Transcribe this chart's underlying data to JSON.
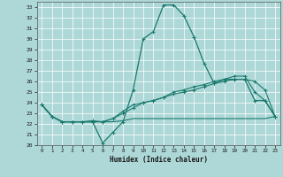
{
  "xlabel": "Humidex (Indice chaleur)",
  "xlim": [
    -0.5,
    23.5
  ],
  "ylim": [
    20,
    33.5
  ],
  "yticks": [
    20,
    21,
    22,
    23,
    24,
    25,
    26,
    27,
    28,
    29,
    30,
    31,
    32,
    33
  ],
  "xticks": [
    0,
    1,
    2,
    3,
    4,
    5,
    6,
    7,
    8,
    9,
    10,
    11,
    12,
    13,
    14,
    15,
    16,
    17,
    18,
    19,
    20,
    21,
    22,
    23
  ],
  "bg_color": "#aed8d8",
  "grid_color": "#ffffff",
  "line_color": "#1a7a6e",
  "line1_x": [
    0,
    1,
    2,
    3,
    4,
    5,
    6,
    7,
    8,
    9,
    10,
    11,
    12,
    13,
    14,
    15,
    16,
    17,
    18,
    19,
    20,
    21,
    22,
    23
  ],
  "line1_y": [
    23.8,
    22.7,
    22.2,
    22.2,
    22.2,
    22.2,
    20.2,
    21.2,
    22.2,
    25.2,
    30.0,
    30.7,
    33.2,
    33.2,
    32.2,
    30.2,
    27.7,
    25.8,
    26.2,
    26.2,
    26.2,
    24.2,
    24.2,
    22.7
  ],
  "line2_x": [
    0,
    1,
    2,
    3,
    4,
    5,
    6,
    7,
    8,
    9,
    10,
    11,
    12,
    13,
    14,
    15,
    16,
    17,
    18,
    19,
    20,
    21,
    22,
    23
  ],
  "line2_y": [
    23.8,
    22.7,
    22.2,
    22.2,
    22.2,
    22.3,
    22.2,
    22.5,
    23.2,
    23.8,
    24.0,
    24.2,
    24.5,
    24.8,
    25.0,
    25.2,
    25.5,
    25.8,
    26.0,
    26.2,
    26.2,
    26.0,
    25.2,
    22.7
  ],
  "line3_x": [
    0,
    1,
    2,
    3,
    4,
    5,
    6,
    7,
    8,
    9,
    10,
    11,
    12,
    13,
    14,
    15,
    16,
    17,
    18,
    19,
    20,
    21,
    22,
    23
  ],
  "line3_y": [
    23.8,
    22.7,
    22.2,
    22.2,
    22.2,
    22.2,
    22.2,
    22.2,
    22.3,
    22.5,
    22.5,
    22.5,
    22.5,
    22.5,
    22.5,
    22.5,
    22.5,
    22.5,
    22.5,
    22.5,
    22.5,
    22.5,
    22.5,
    22.7
  ],
  "line4_x": [
    0,
    1,
    2,
    3,
    4,
    5,
    6,
    7,
    8,
    9,
    10,
    11,
    12,
    13,
    14,
    15,
    16,
    17,
    18,
    19,
    20,
    21,
    22,
    23
  ],
  "line4_y": [
    23.8,
    22.7,
    22.2,
    22.2,
    22.2,
    22.2,
    22.2,
    22.5,
    23.0,
    23.5,
    24.0,
    24.2,
    24.5,
    25.0,
    25.2,
    25.5,
    25.7,
    26.0,
    26.2,
    26.5,
    26.5,
    25.0,
    24.2,
    22.7
  ]
}
